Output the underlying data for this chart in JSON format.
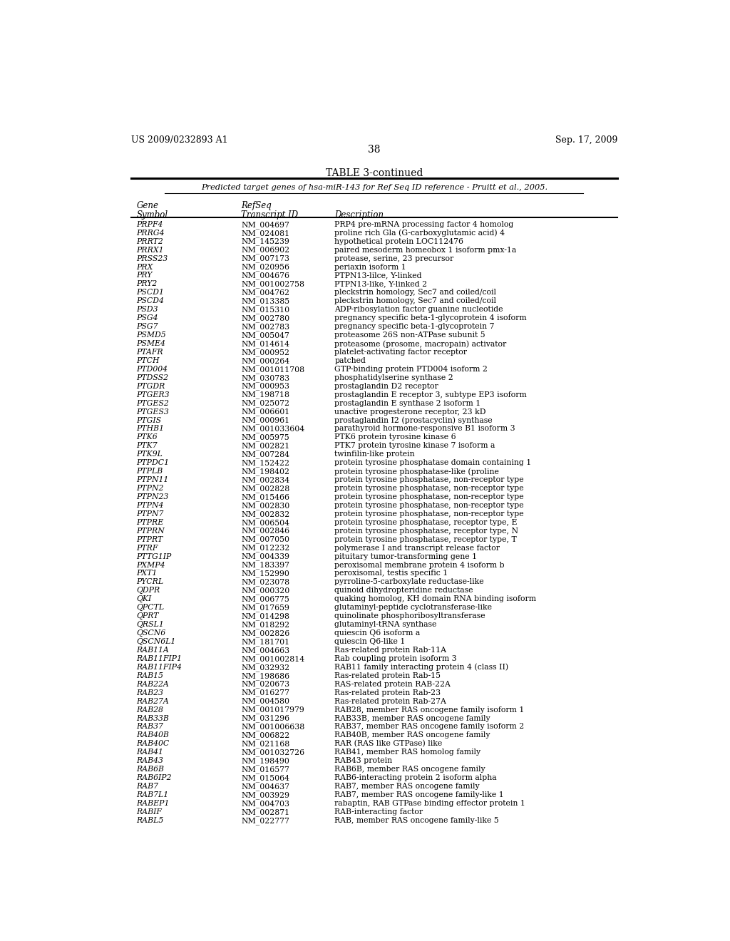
{
  "header_left": "US 2009/0232893 A1",
  "header_right": "Sep. 17, 2009",
  "page_number": "38",
  "table_title": "TABLE 3-continued",
  "subtitle": "Predicted target genes of hsa-miR-143 for Ref Seq ID reference - Pruitt et al., 2005.",
  "rows": [
    [
      "PRPF4",
      "NM_004697",
      "PRP4 pre-mRNA processing factor 4 homolog"
    ],
    [
      "PRRG4",
      "NM_024081",
      "proline rich Gla (G-carboxyglutamic acid) 4"
    ],
    [
      "PRRT2",
      "NM_145239",
      "hypothetical protein LOC112476"
    ],
    [
      "PRRX1",
      "NM_006902",
      "paired mesoderm homeobox 1 isoform pmx-1a"
    ],
    [
      "PRSS23",
      "NM_007173",
      "protease, serine, 23 precursor"
    ],
    [
      "PRX",
      "NM_020956",
      "periaxin isoform 1"
    ],
    [
      "PRY",
      "NM_004676",
      "PTPN13-lilce, Y-linked"
    ],
    [
      "PRY2",
      "NM_001002758",
      "PTPN13-like, Y-linked 2"
    ],
    [
      "PSCD1",
      "NM_004762",
      "pleckstrin homology, Sec7 and coiled/coil"
    ],
    [
      "PSCD4",
      "NM_013385",
      "pleckstrin homology, Sec7 and coiled/coil"
    ],
    [
      "PSD3",
      "NM_015310",
      "ADP-ribosylation factor guanine nucleotide"
    ],
    [
      "PSG4",
      "NM_002780",
      "pregnancy specific beta-1-glycoprotein 4 isoform"
    ],
    [
      "PSG7",
      "NM_002783",
      "pregnancy specific beta-1-glycoprotein 7"
    ],
    [
      "PSMD5",
      "NM_005047",
      "proteasome 26S non-ATPase subunit 5"
    ],
    [
      "PSME4",
      "NM_014614",
      "proteasome (prosome, macropain) activator"
    ],
    [
      "PTAFR",
      "NM_000952",
      "platelet-activating factor receptor"
    ],
    [
      "PTCH",
      "NM_000264",
      "patched"
    ],
    [
      "PTD004",
      "NM_001011708",
      "GTP-binding protein PTD004 isoform 2"
    ],
    [
      "PTDSS2",
      "NM_030783",
      "phosphatidylserine synthase 2"
    ],
    [
      "PTGDR",
      "NM_000953",
      "prostaglandin D2 receptor"
    ],
    [
      "PTGER3",
      "NM_198718",
      "prostaglandin E receptor 3, subtype EP3 isoform"
    ],
    [
      "PTGES2",
      "NM_025072",
      "prostaglandin E synthase 2 isoform 1"
    ],
    [
      "PTGES3",
      "NM_006601",
      "unactive progesterone receptor, 23 kD"
    ],
    [
      "PTGIS",
      "NM_000961",
      "prostaglandin I2 (prostacyclin) synthase"
    ],
    [
      "PTHB1",
      "NM_001033604",
      "parathyroid hormone-responsive B1 isoform 3"
    ],
    [
      "PTK6",
      "NM_005975",
      "PTK6 protein tyrosine kinase 6"
    ],
    [
      "PTK7",
      "NM_002821",
      "PTK7 protein tyrosine kinase 7 isoform a"
    ],
    [
      "PTK9L",
      "NM_007284",
      "twinfilin-like protein"
    ],
    [
      "PTPDC1",
      "NM_152422",
      "protein tyrosine phosphatase domain containing 1"
    ],
    [
      "PTPLB",
      "NM_198402",
      "protein tyrosine phosphatase-like (proline"
    ],
    [
      "PTPN11",
      "NM_002834",
      "protein tyrosine phosphatase, non-receptor type"
    ],
    [
      "PTPN2",
      "NM_002828",
      "protein tyrosine phosphatase, non-receptor type"
    ],
    [
      "PTPN23",
      "NM_015466",
      "protein tyrosine phosphatase, non-receptor type"
    ],
    [
      "PTPN4",
      "NM_002830",
      "protein tyrosine phosphatase, non-receptor type"
    ],
    [
      "PTPN7",
      "NM_002832",
      "protein tyrosine phosphatase, non-receptor type"
    ],
    [
      "PTPRE",
      "NM_006504",
      "protein tyrosine phosphatase, receptor type, E"
    ],
    [
      "PTPRN",
      "NM_002846",
      "protein tyrosine phosphatase, receptor type, N"
    ],
    [
      "PTPRT",
      "NM_007050",
      "protein tyrosine phosphatase, receptor type, T"
    ],
    [
      "PTRF",
      "NM_012232",
      "polymerase I and transcript release factor"
    ],
    [
      "PTTG1IP",
      "NM_004339",
      "pituitary tumor-transforming gene 1"
    ],
    [
      "PXMP4",
      "NM_183397",
      "peroxisomal membrane protein 4 isoform b"
    ],
    [
      "PXT1",
      "NM_152990",
      "peroxisomal, testis specific 1"
    ],
    [
      "PYCRL",
      "NM_023078",
      "pyrroline-5-carboxylate reductase-like"
    ],
    [
      "QDPR",
      "NM_000320",
      "quinoid dihydropteridine reductase"
    ],
    [
      "QKI",
      "NM_006775",
      "quaking homolog, KH domain RNA binding isoform"
    ],
    [
      "QPCTL",
      "NM_017659",
      "glutaminyl-peptide cyclotransferase-like"
    ],
    [
      "QPRT",
      "NM_014298",
      "quinolinate phosphoribosyltransferase"
    ],
    [
      "QRSL1",
      "NM_018292",
      "glutaminyl-tRNA synthase"
    ],
    [
      "QSCN6",
      "NM_002826",
      "quiescin Q6 isoform a"
    ],
    [
      "QSCN6L1",
      "NM_181701",
      "quiescin Q6-like 1"
    ],
    [
      "RAB11A",
      "NM_004663",
      "Ras-related protein Rab-11A"
    ],
    [
      "RAB11FIP1",
      "NM_001002814",
      "Rab coupling protein isoform 3"
    ],
    [
      "RAB11FIP4",
      "NM_032932",
      "RAB11 family interacting protein 4 (class II)"
    ],
    [
      "RAB15",
      "NM_198686",
      "Ras-related protein Rab-15"
    ],
    [
      "RAB22A",
      "NM_020673",
      "RAS-related protein RAB-22A"
    ],
    [
      "RAB23",
      "NM_016277",
      "Ras-related protein Rab-23"
    ],
    [
      "RAB27A",
      "NM_004580",
      "Ras-related protein Rab-27A"
    ],
    [
      "RAB28",
      "NM_001017979",
      "RAB28, member RAS oncogene family isoform 1"
    ],
    [
      "RAB33B",
      "NM_031296",
      "RAB33B, member RAS oncogene family"
    ],
    [
      "RAB37",
      "NM_001006638",
      "RAB37, member RAS oncogene family isoform 2"
    ],
    [
      "RAB40B",
      "NM_006822",
      "RAB40B, member RAS oncogene family"
    ],
    [
      "RAB40C",
      "NM_021168",
      "RAR (RAS like GTPase) like"
    ],
    [
      "RAB41",
      "NM_001032726",
      "RAB41, member RAS homolog family"
    ],
    [
      "RAB43",
      "NM_198490",
      "RAB43 protein"
    ],
    [
      "RAB6B",
      "NM_016577",
      "RAB6B, member RAS oncogene family"
    ],
    [
      "RAB6IP2",
      "NM_015064",
      "RAB6-interacting protein 2 isoform alpha"
    ],
    [
      "RAB7",
      "NM_004637",
      "RAB7, member RAS oncogene family"
    ],
    [
      "RAB7L1",
      "NM_003929",
      "RAB7, member RAS oncogene family-like 1"
    ],
    [
      "RABEP1",
      "NM_004703",
      "rabaptin, RAB GTPase binding effector protein 1"
    ],
    [
      "RABIF",
      "NM_002871",
      "RAB-interacting factor"
    ],
    [
      "RABL5",
      "NM_022777",
      "RAB, member RAS oncogene family-like 5"
    ]
  ]
}
